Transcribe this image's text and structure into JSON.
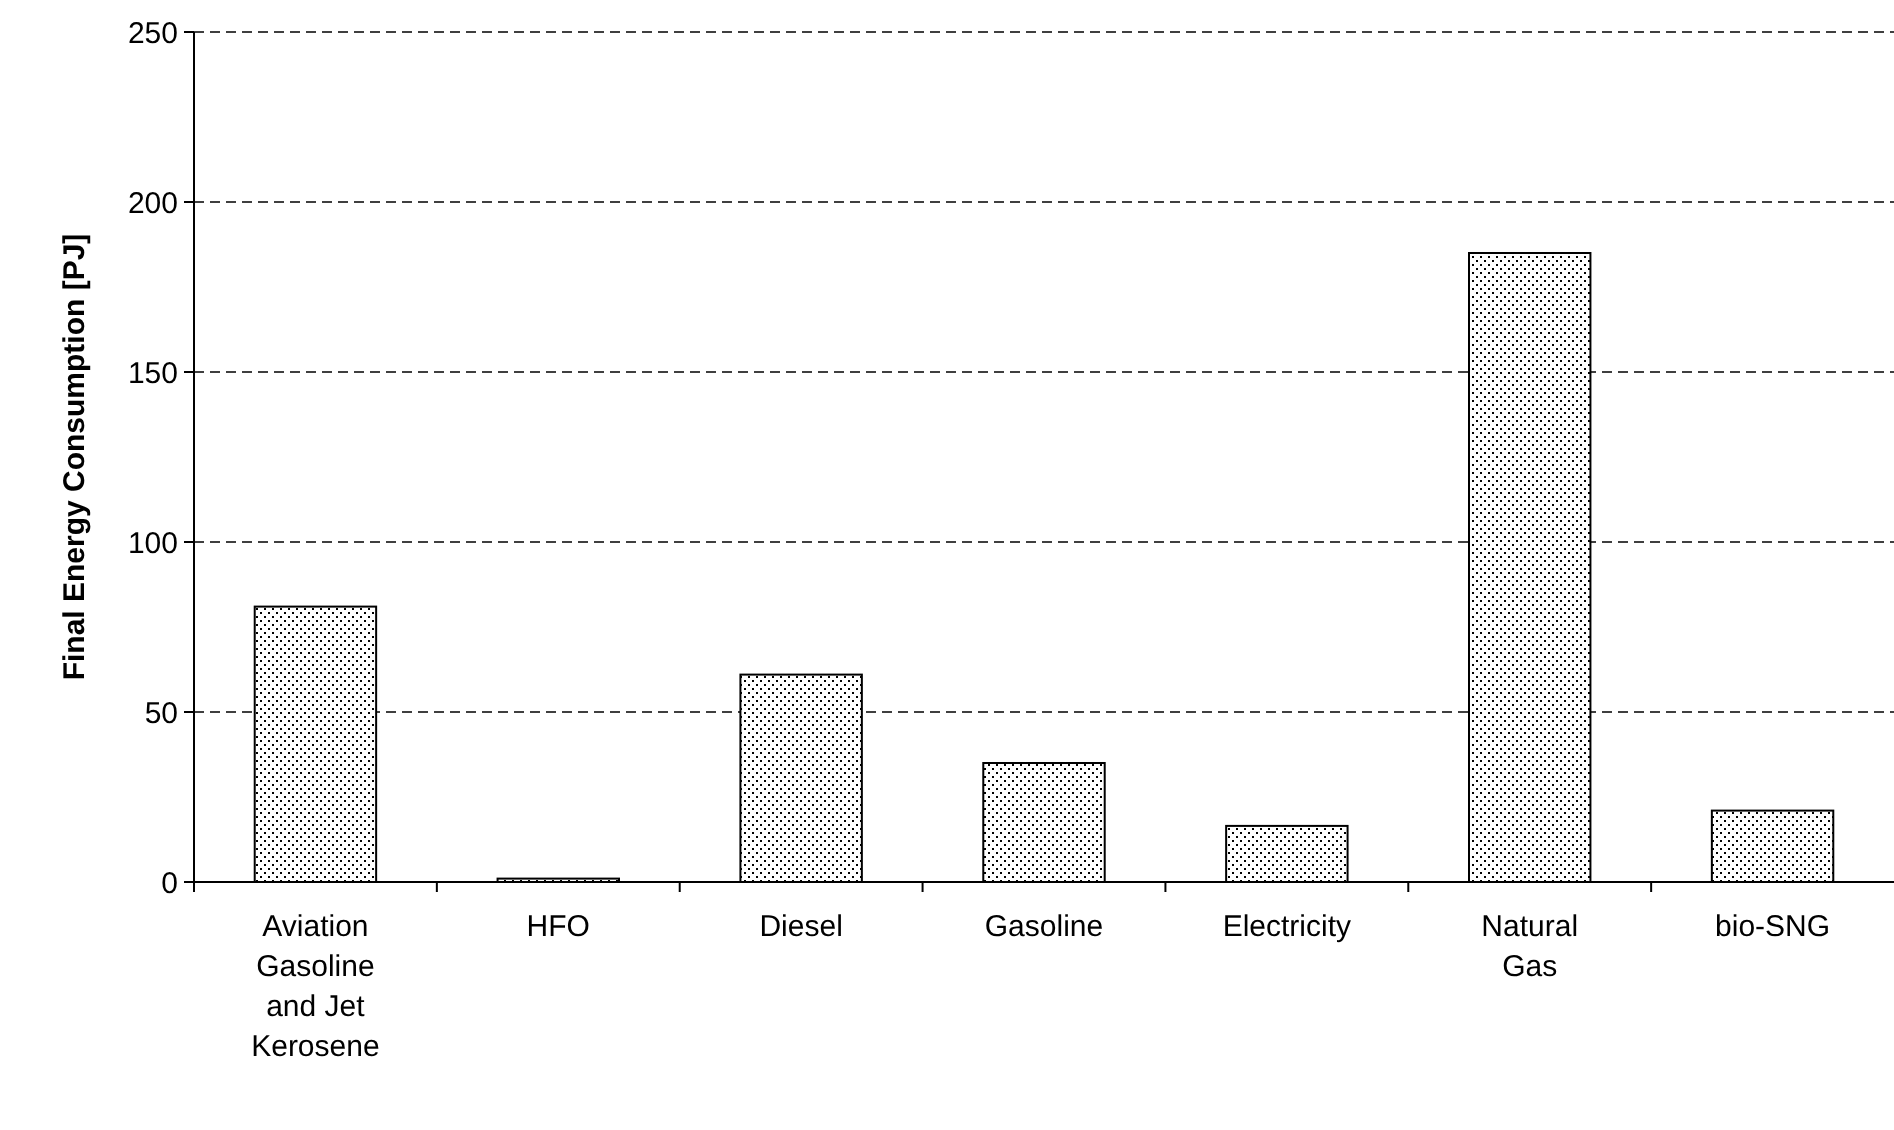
{
  "chart_data": {
    "type": "bar",
    "ylabel": "Final Energy Consumption [PJ]",
    "categories": [
      "Aviation Gasoline and Jet Kerosene",
      "HFO",
      "Diesel",
      "Gasoline",
      "Electricity",
      "Natural Gas",
      "bio-SNG"
    ],
    "values": [
      81,
      1,
      61,
      35,
      16.5,
      185,
      21
    ],
    "color": "#000000",
    "ylim": [
      0,
      250
    ],
    "yticks": [
      0,
      50,
      100,
      150,
      200,
      250
    ],
    "grid": "y"
  }
}
